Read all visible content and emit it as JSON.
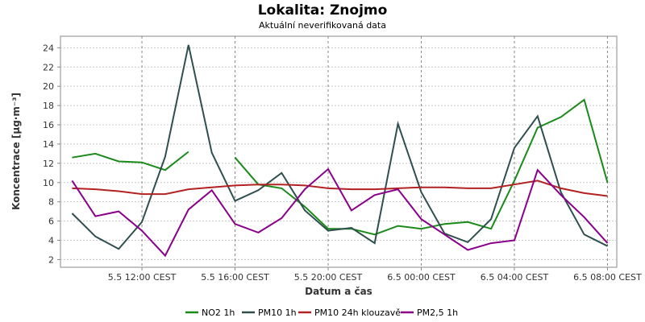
{
  "chart_data": {
    "type": "line",
    "title": "Lokalita: Znojmo",
    "subtitle": "Aktuální neverifikovaná data",
    "xlabel": "Datum a čas",
    "ylabel": "Koncentrace [µg·m⁻³]",
    "ylim": [
      1.2,
      25.2
    ],
    "y_ticks": [
      2,
      4,
      6,
      8,
      10,
      12,
      14,
      16,
      18,
      20,
      22,
      24
    ],
    "x_hours": [
      9,
      10,
      11,
      12,
      13,
      14,
      15,
      16,
      17,
      18,
      19,
      20,
      21,
      22,
      23,
      24,
      25,
      26,
      27,
      28,
      29,
      30,
      31,
      32
    ],
    "x_range_hours": [
      8.5,
      32.4
    ],
    "x_ticks": [
      {
        "hour": 12,
        "label": "5.5 12:00 CEST"
      },
      {
        "hour": 16,
        "label": "5.5 16:00 CEST"
      },
      {
        "hour": 20,
        "label": "5.5 20:00 CEST"
      },
      {
        "hour": 24,
        "label": "6.5 00:00 CEST"
      },
      {
        "hour": 28,
        "label": "6.5 04:00 CEST"
      },
      {
        "hour": 32,
        "label": "6.5 08:00 CEST"
      }
    ],
    "grid": true,
    "legend_position": "bottom",
    "series": [
      {
        "name": "NO2 1h",
        "color": "#1a8a1a",
        "values": [
          12.6,
          13.0,
          12.2,
          12.1,
          11.3,
          13.2,
          null,
          12.6,
          9.8,
          9.4,
          7.5,
          5.2,
          5.2,
          4.6,
          5.5,
          5.2,
          5.7,
          5.9,
          5.2,
          10.2,
          15.7,
          16.8,
          18.6,
          10.0
        ]
      },
      {
        "name": "PM10 1h",
        "color": "#2f4f4f",
        "values": [
          6.8,
          4.4,
          3.1,
          5.9,
          12.7,
          24.3,
          13.1,
          8.1,
          9.2,
          11.0,
          7.1,
          5.0,
          5.3,
          3.7,
          16.1,
          9.0,
          4.7,
          3.8,
          6.2,
          13.6,
          16.9,
          9.0,
          4.6,
          3.4
        ]
      },
      {
        "name": "PM10 24h klouzavě",
        "color": "#b22222",
        "values": [
          9.4,
          9.3,
          9.1,
          8.8,
          8.8,
          9.3,
          9.5,
          9.7,
          9.8,
          9.8,
          9.7,
          9.4,
          9.3,
          9.3,
          9.4,
          9.5,
          9.5,
          9.4,
          9.4,
          9.8,
          10.2,
          9.4,
          8.9,
          8.6
        ]
      },
      {
        "name": "PM2,5 1h",
        "color": "#8b008b",
        "values": [
          10.2,
          6.5,
          7.0,
          5.0,
          2.4,
          7.2,
          9.2,
          5.7,
          4.8,
          6.3,
          9.3,
          11.4,
          7.1,
          8.7,
          9.3,
          6.2,
          4.6,
          3.0,
          3.7,
          4.0,
          11.3,
          8.7,
          6.4,
          3.7
        ]
      }
    ]
  }
}
